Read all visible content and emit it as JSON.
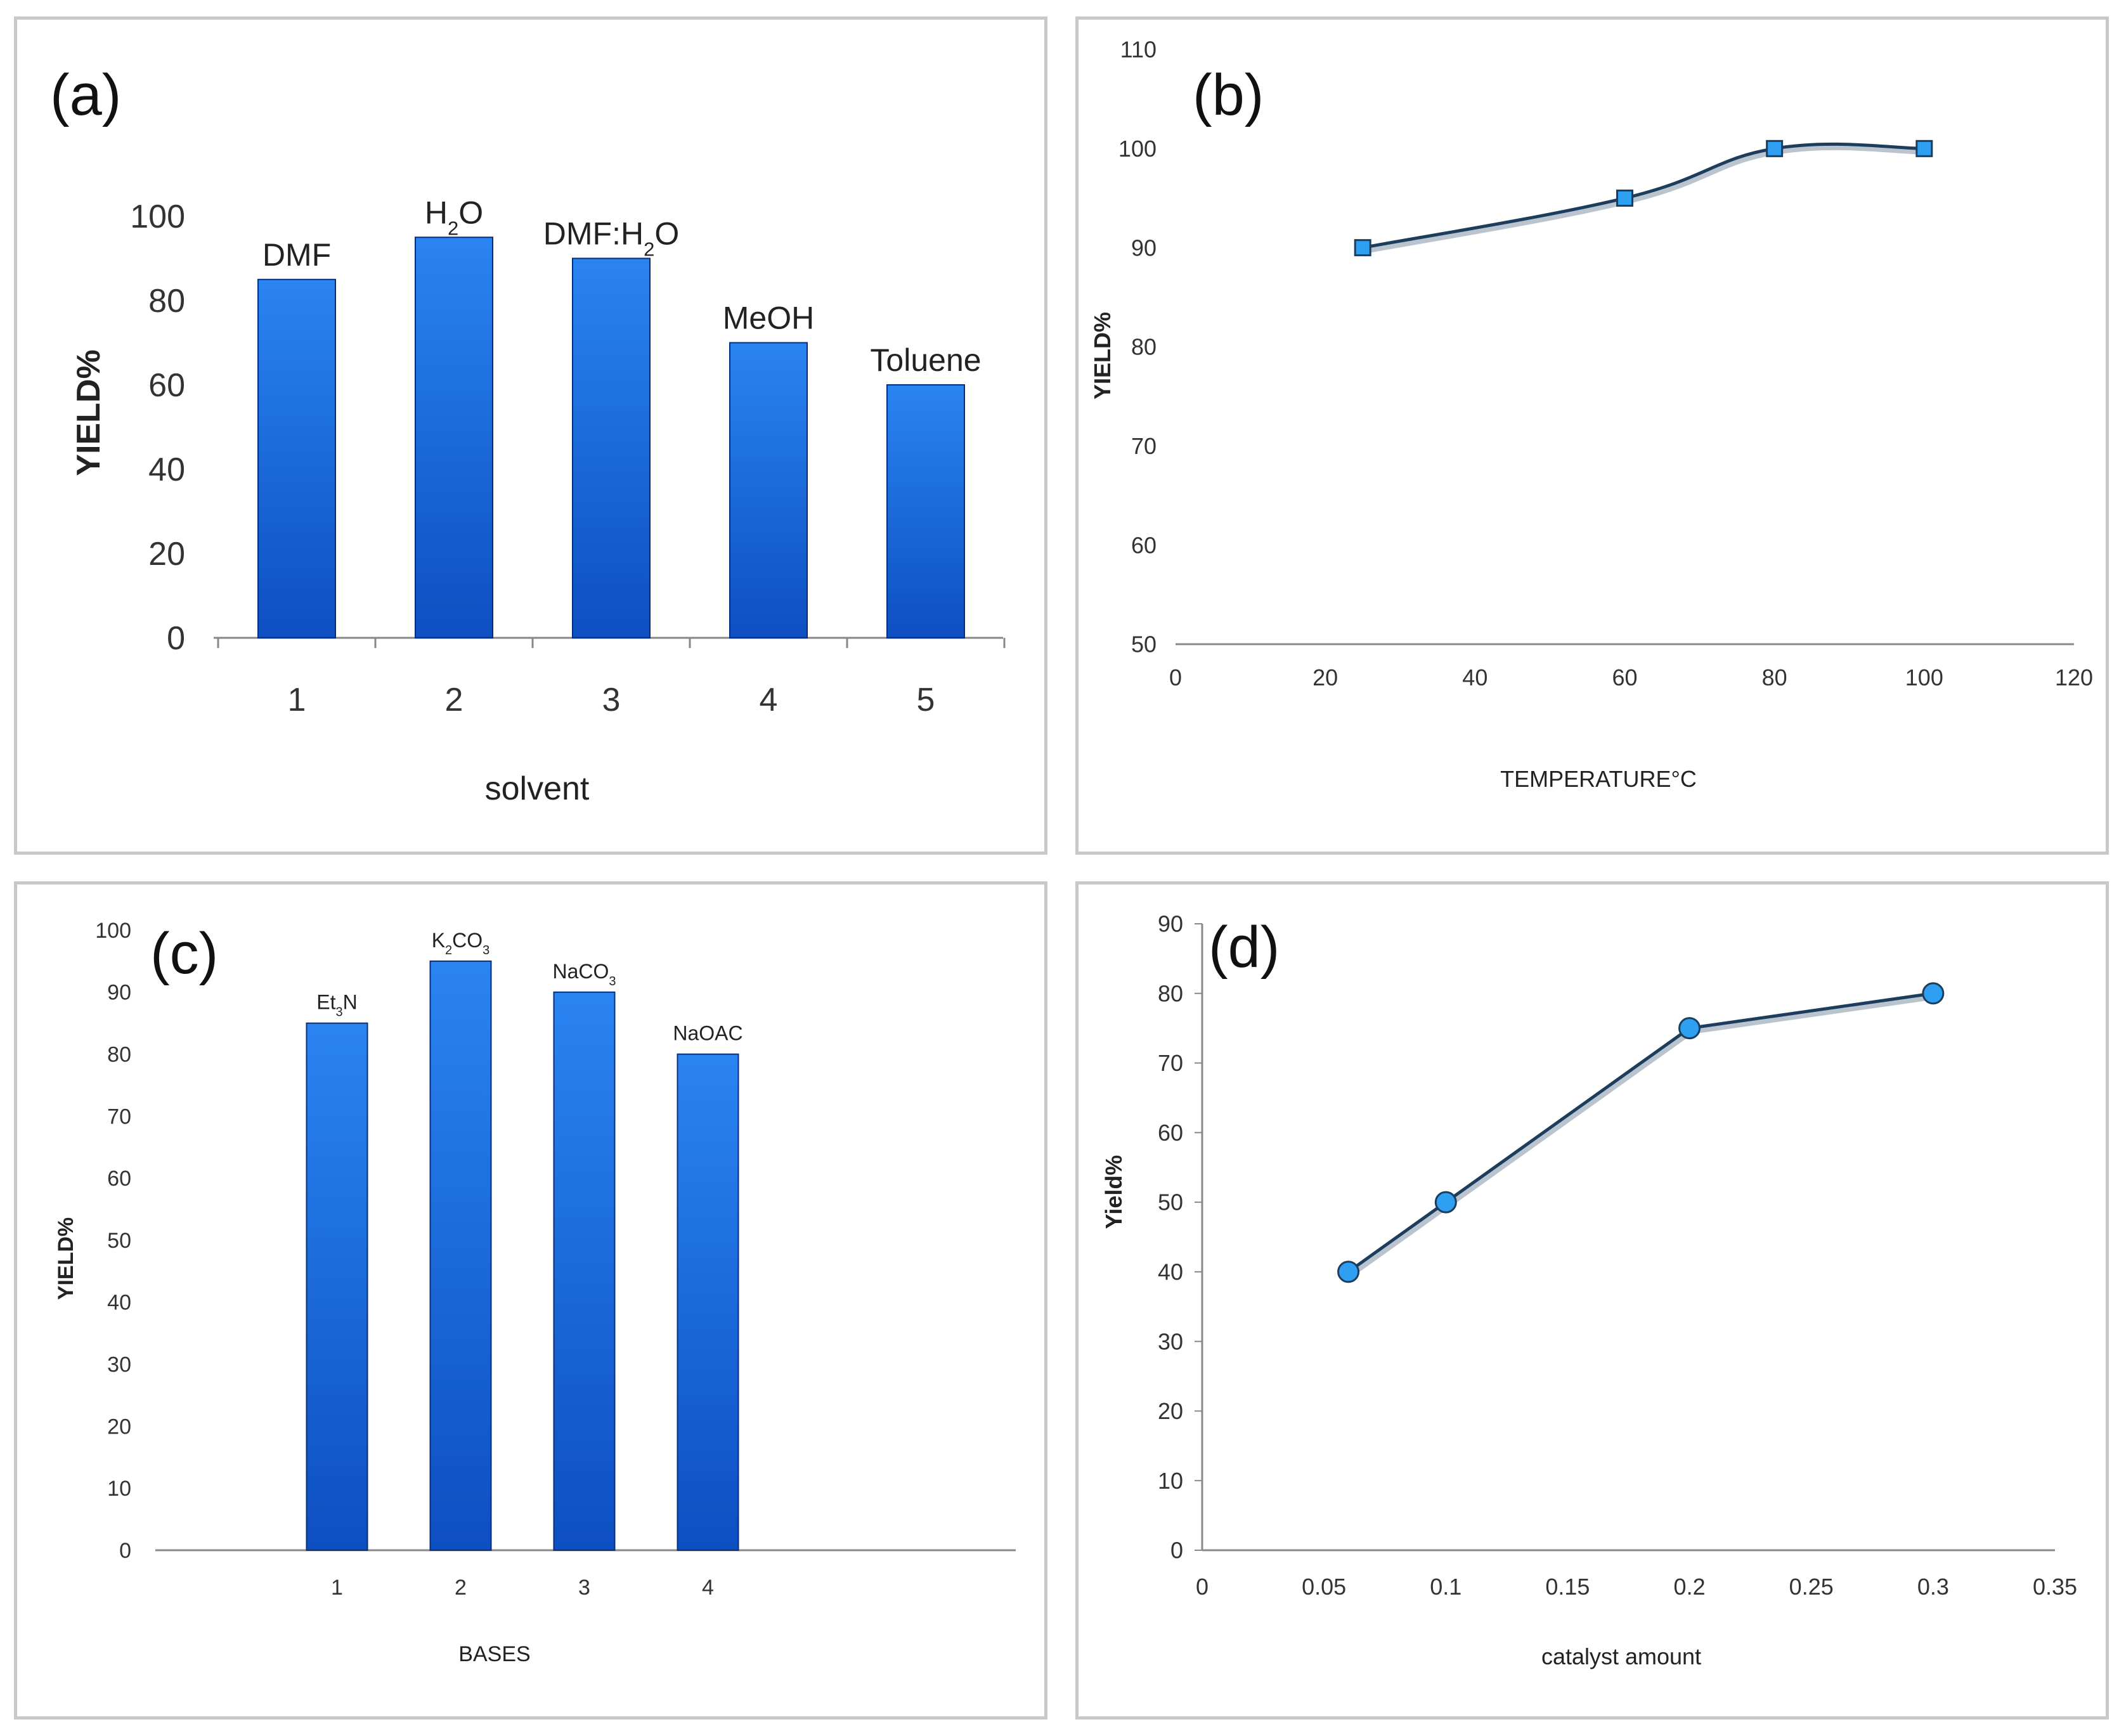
{
  "colors": {
    "bar_top": "#2a84f2",
    "bar_bottom": "#0d4fc2",
    "bar_edge": "#0a2f7a",
    "line": "#1d3d5c",
    "marker": "#2f9ff2",
    "axis": "#888888"
  },
  "chart_data": [
    {
      "id": "a",
      "panel_label": "(a)",
      "type": "bar",
      "categories": [
        "1",
        "2",
        "3",
        "4",
        "5"
      ],
      "values": [
        85,
        95,
        90,
        70,
        60
      ],
      "bar_labels": [
        "DMF",
        "H2O",
        "DMF:H2O",
        "MeOH",
        "Toluene"
      ],
      "xlabel": "solvent",
      "ylabel": "YIELD%",
      "ylim": [
        0,
        100
      ],
      "yticks": [
        0,
        20,
        40,
        60,
        80,
        100
      ]
    },
    {
      "id": "b",
      "panel_label": "(b)",
      "type": "line",
      "x": [
        25,
        60,
        80,
        100
      ],
      "y": [
        90,
        95,
        100,
        100
      ],
      "xlabel": "TEMPERATURE°C",
      "ylabel": "YIELD%",
      "xlim": [
        0,
        120
      ],
      "ylim": [
        50,
        110
      ],
      "xticks": [
        0,
        20,
        40,
        60,
        80,
        100,
        120
      ],
      "yticks": [
        50,
        60,
        70,
        80,
        90,
        100,
        110
      ],
      "marker": "square",
      "smooth": true
    },
    {
      "id": "c",
      "panel_label": "(c)",
      "type": "bar",
      "categories": [
        "1",
        "2",
        "3",
        "4"
      ],
      "values": [
        85,
        95,
        90,
        80
      ],
      "bar_labels": [
        "Et3N",
        "K2CO3",
        "NaCO3",
        "NaOAC"
      ],
      "xlabel": "BASES",
      "ylabel": "YIELD%",
      "ylim": [
        0,
        100
      ],
      "yticks": [
        0,
        10,
        20,
        30,
        40,
        50,
        60,
        70,
        80,
        90,
        100
      ]
    },
    {
      "id": "d",
      "panel_label": "(d)",
      "type": "line",
      "x": [
        0.06,
        0.1,
        0.2,
        0.3
      ],
      "y": [
        40,
        50,
        75,
        80
      ],
      "xlabel": "catalyst amount",
      "ylabel": "Yield%",
      "xlim": [
        0,
        0.35
      ],
      "ylim": [
        0,
        90
      ],
      "xticks": [
        "0",
        "0.05",
        "0.1",
        "0.15",
        "0.2",
        "0.25",
        "0.3",
        "0.35"
      ],
      "yticks": [
        0,
        10,
        20,
        30,
        40,
        50,
        60,
        70,
        80,
        90
      ],
      "marker": "circle",
      "smooth": false
    }
  ]
}
